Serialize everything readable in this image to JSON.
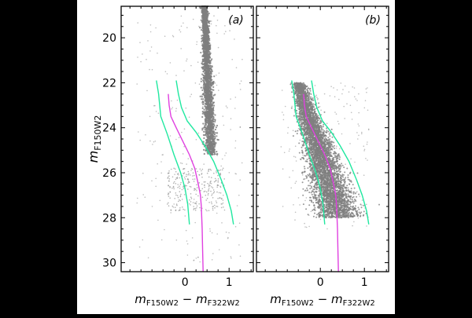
{
  "chart_data": [
    {
      "type": "scatter",
      "panel_label": "(a)",
      "xlabel": "m_{F150W2} − m_{F322W2}",
      "ylabel": "m_{F150W2}",
      "xlim": [
        -1.45,
        1.55
      ],
      "ylim": [
        30.4,
        18.6
      ],
      "y_inverted": true,
      "x_ticks": [
        "0",
        "1"
      ],
      "y_ticks": [
        "20",
        "22",
        "24",
        "26",
        "28",
        "30"
      ],
      "series": [
        {
          "role": "points",
          "color": "#7f7f7f",
          "description_points": [
            [
              0.44,
              18.6
            ],
            [
              0.45,
              19.5
            ],
            [
              0.47,
              20.5
            ],
            [
              0.49,
              21.5
            ],
            [
              0.51,
              22.5
            ],
            [
              0.53,
              23.5
            ],
            [
              0.56,
              24.3
            ],
            [
              0.6,
              25.0
            ],
            [
              0.3,
              26.8
            ],
            [
              0.1,
              27.3
            ]
          ]
        },
        {
          "role": "ridge_line",
          "color": "#e040e0",
          "x": [
            -0.38,
            -0.36,
            -0.32,
            -0.2,
            -0.05,
            0.1,
            0.22,
            0.3,
            0.35,
            0.37,
            0.39,
            0.4,
            0.41
          ],
          "y": [
            22.5,
            23.0,
            23.5,
            24.0,
            24.6,
            25.2,
            25.8,
            26.5,
            27.0,
            27.5,
            28.5,
            29.5,
            30.4
          ]
        },
        {
          "role": "envelope_left",
          "color": "#20e8a0",
          "x": [
            -0.65,
            -0.6,
            -0.55,
            -0.4,
            -0.25,
            -0.1,
            0.0,
            0.06,
            0.1
          ],
          "y": [
            21.9,
            22.5,
            23.5,
            24.3,
            25.2,
            26.0,
            26.7,
            27.4,
            28.3
          ]
        },
        {
          "role": "envelope_right",
          "color": "#20e8a0",
          "x": [
            -0.2,
            -0.15,
            -0.08,
            0.05,
            0.25,
            0.45,
            0.65,
            0.82,
            0.95,
            1.05,
            1.1
          ],
          "y": [
            21.9,
            22.5,
            23.1,
            23.7,
            24.2,
            24.8,
            25.5,
            26.3,
            27.0,
            27.7,
            28.3
          ]
        }
      ]
    },
    {
      "type": "scatter",
      "panel_label": "(b)",
      "xlabel": "m_{F150W2} − m_{F322W2}",
      "xlim": [
        -1.45,
        1.55
      ],
      "ylim": [
        30.4,
        18.6
      ],
      "y_inverted": true,
      "x_ticks": [
        "0",
        "1"
      ],
      "series": [
        {
          "role": "points",
          "color": "#7f7f7f",
          "description_points": [
            [
              -0.55,
              22.0
            ],
            [
              -0.4,
              23.0
            ],
            [
              -0.2,
              24.0
            ],
            [
              0.0,
              25.0
            ],
            [
              0.2,
              26.0
            ],
            [
              0.35,
              27.0
            ],
            [
              0.45,
              28.0
            ]
          ]
        },
        {
          "role": "ridge_line",
          "color": "#e040e0",
          "x": [
            -0.38,
            -0.36,
            -0.32,
            -0.2,
            -0.05,
            0.1,
            0.22,
            0.3,
            0.35,
            0.37,
            0.39,
            0.4,
            0.41
          ],
          "y": [
            22.5,
            23.0,
            23.5,
            24.0,
            24.6,
            25.2,
            25.8,
            26.5,
            27.0,
            27.5,
            28.5,
            29.5,
            30.4
          ]
        },
        {
          "role": "envelope_left",
          "color": "#20e8a0",
          "x": [
            -0.65,
            -0.6,
            -0.55,
            -0.4,
            -0.25,
            -0.1,
            0.0,
            0.06,
            0.1
          ],
          "y": [
            21.9,
            22.5,
            23.5,
            24.3,
            25.2,
            26.0,
            26.7,
            27.4,
            28.3
          ]
        },
        {
          "role": "envelope_right",
          "color": "#20e8a0",
          "x": [
            -0.2,
            -0.15,
            -0.08,
            0.05,
            0.25,
            0.45,
            0.65,
            0.82,
            0.95,
            1.05,
            1.1
          ],
          "y": [
            21.9,
            22.5,
            23.1,
            23.7,
            24.2,
            24.8,
            25.5,
            26.3,
            27.0,
            27.7,
            28.3
          ]
        }
      ]
    }
  ],
  "labels": {
    "ylabel_main": "m",
    "ylabel_sub": "F150W2",
    "xlabel_m1": "m",
    "xlabel_sub1": "F150W2",
    "xlabel_minus": " − ",
    "xlabel_m2": "m",
    "xlabel_sub2": "F322W2"
  },
  "colors": {
    "page_bg": "#000000",
    "plot_bg": "#ffffff",
    "points": "#7f7f7f",
    "ridge": "#e040e0",
    "envelope": "#20e8a0"
  }
}
